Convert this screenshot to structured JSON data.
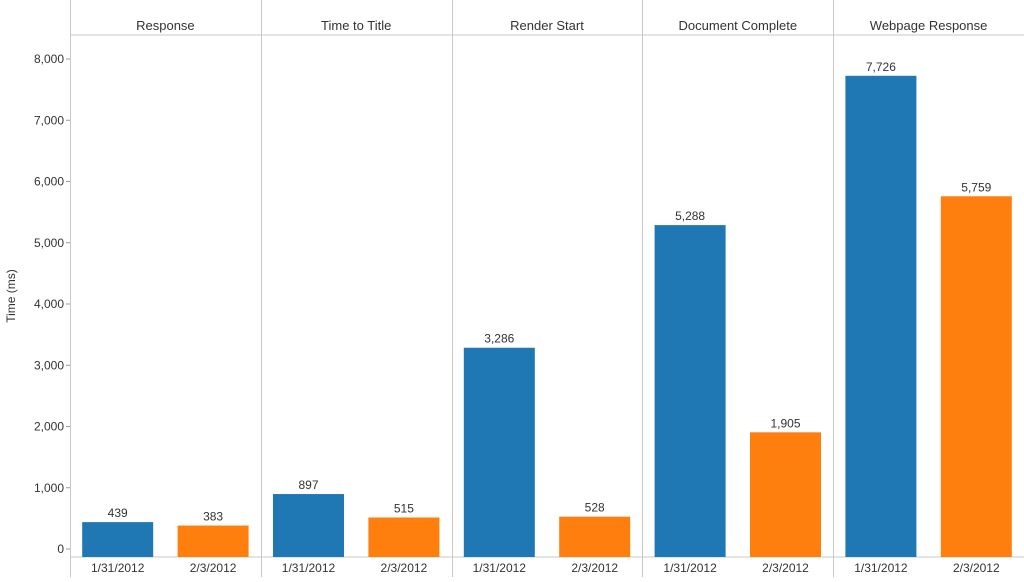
{
  "chart_data": {
    "type": "bar",
    "ylabel": "Time (ms)",
    "ylim": [
      0,
      8400
    ],
    "y_ticks": [
      0,
      1000,
      2000,
      3000,
      4000,
      5000,
      6000,
      7000,
      8000
    ],
    "y_tick_labels": [
      "0",
      "1,000",
      "2,000",
      "3,000",
      "4,000",
      "5,000",
      "6,000",
      "7,000",
      "8,000"
    ],
    "grid": false,
    "categories": [
      "1/31/2012",
      "2/3/2012"
    ],
    "panels": [
      {
        "name": "Response",
        "values": [
          439,
          383
        ],
        "value_labels": [
          "439",
          "383"
        ]
      },
      {
        "name": "Time to Title",
        "values": [
          897,
          515
        ],
        "value_labels": [
          "897",
          "515"
        ]
      },
      {
        "name": "Render Start",
        "values": [
          3286,
          528
        ],
        "value_labels": [
          "3,286",
          "528"
        ]
      },
      {
        "name": "Document Complete",
        "values": [
          5288,
          1905
        ],
        "value_labels": [
          "5,288",
          "1,905"
        ]
      },
      {
        "name": "Webpage Response",
        "values": [
          7726,
          5759
        ],
        "value_labels": [
          "7,726",
          "5,759"
        ]
      }
    ],
    "colors": {
      "1/31/2012": "#1f77b4",
      "2/3/2012": "#ff7f0e"
    }
  }
}
